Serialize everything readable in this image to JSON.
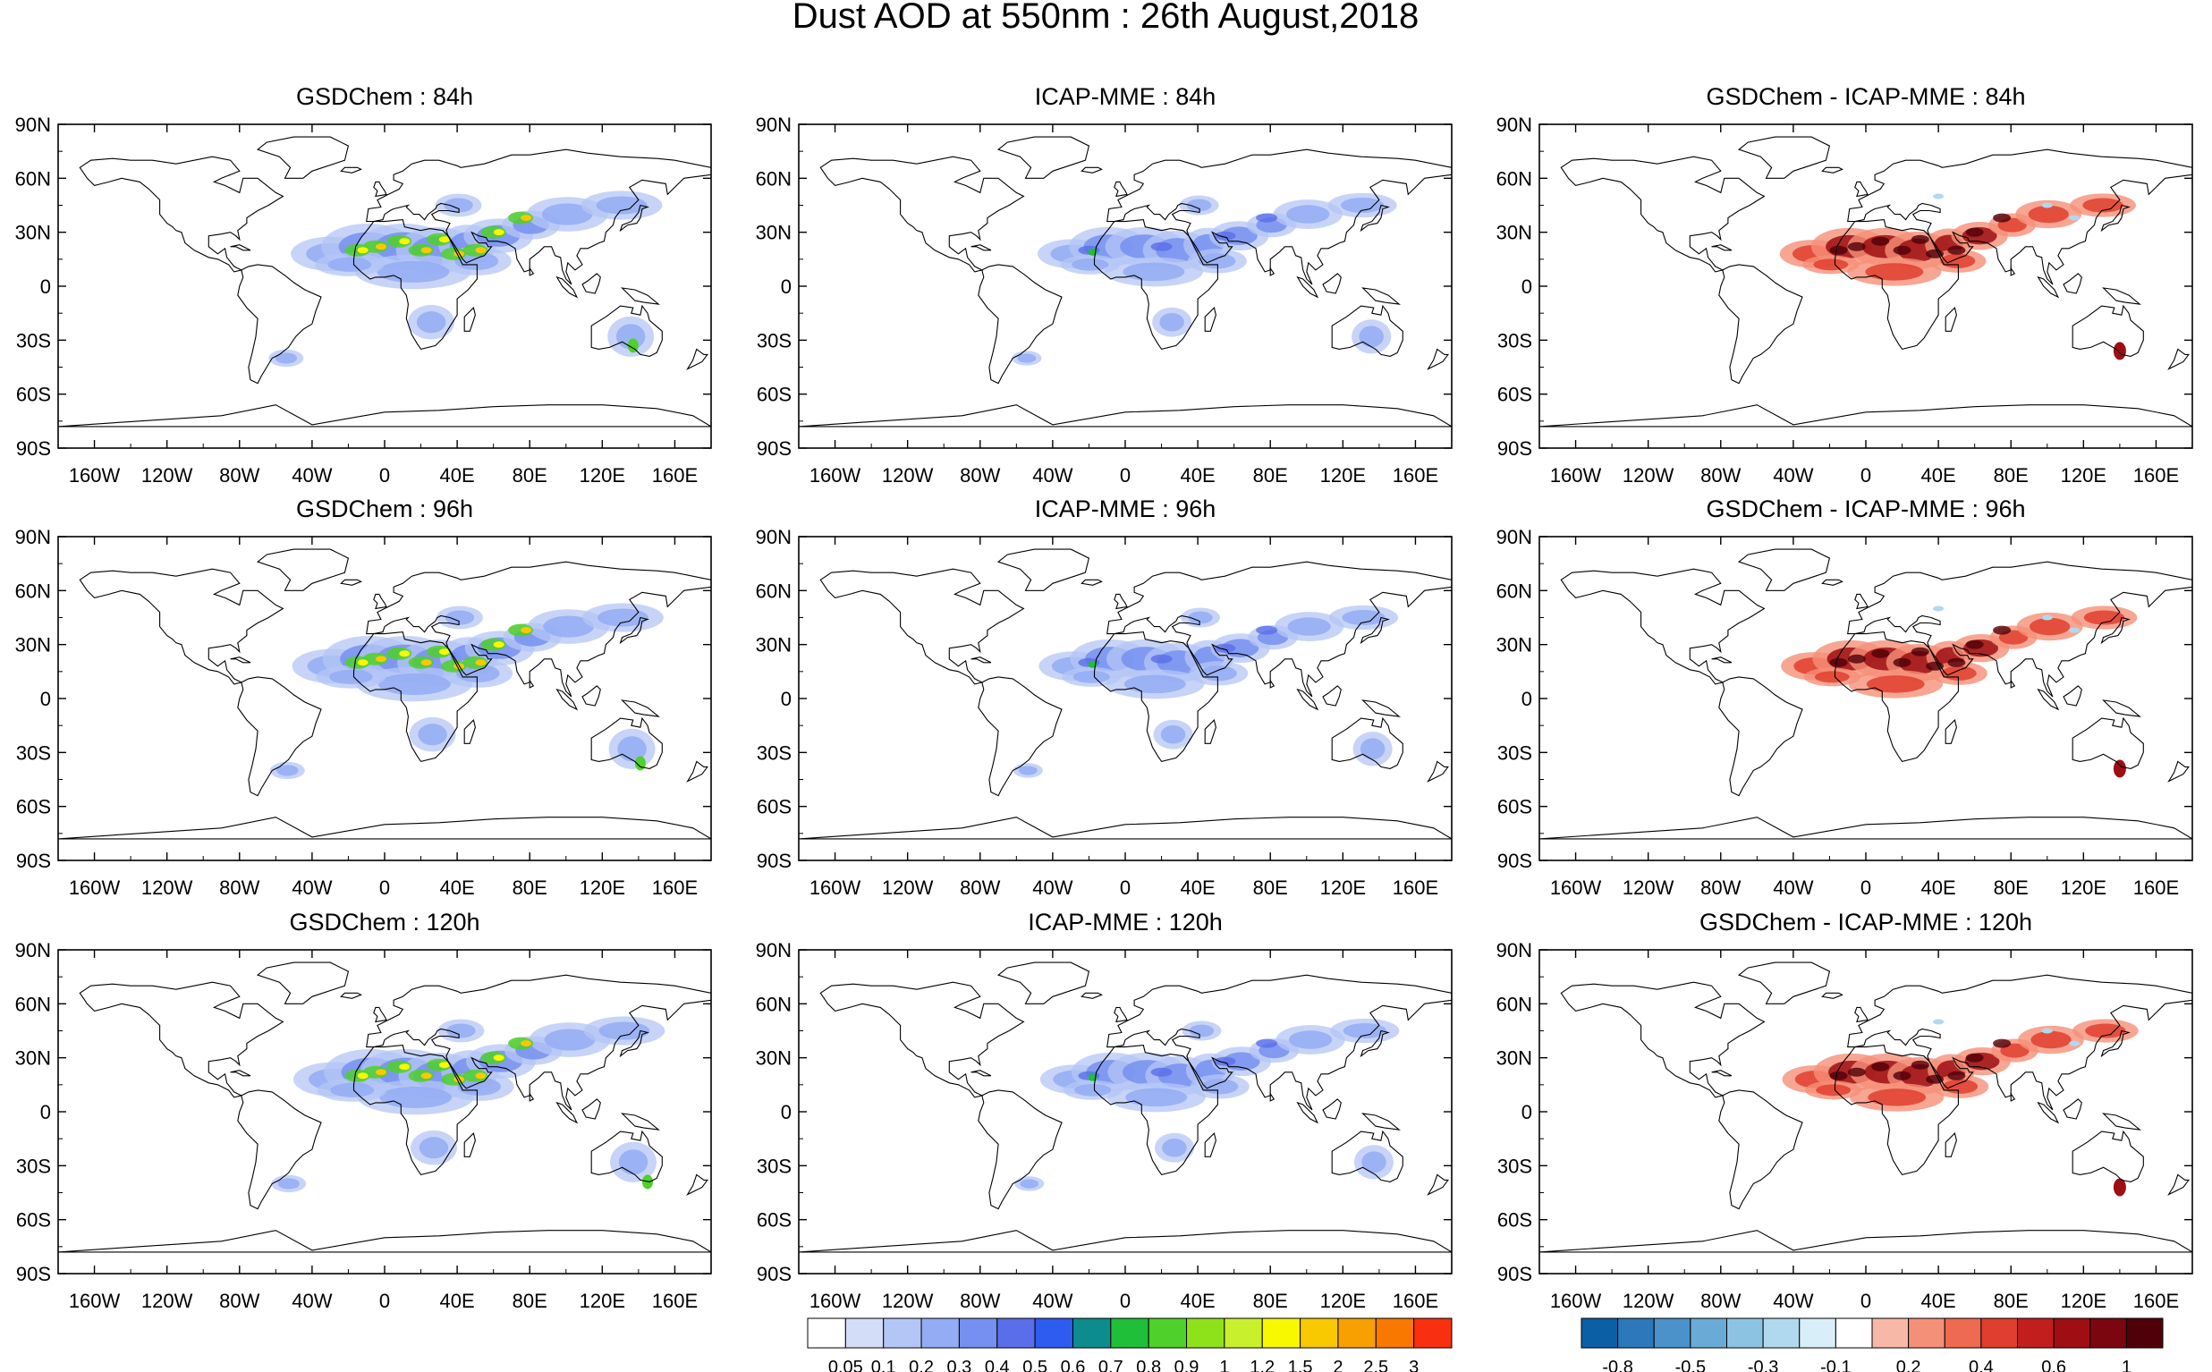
{
  "title": "Dust AOD at 550nm : 26th August,2018",
  "panels": [
    {
      "title": "GSDChem : 84h",
      "kind": "aod"
    },
    {
      "title": "ICAP-MME : 84h",
      "kind": "aod"
    },
    {
      "title": "GSDChem - ICAP-MME : 84h",
      "kind": "diff"
    },
    {
      "title": "GSDChem : 96h",
      "kind": "aod"
    },
    {
      "title": "ICAP-MME : 96h",
      "kind": "aod"
    },
    {
      "title": "GSDChem - ICAP-MME : 96h",
      "kind": "diff"
    },
    {
      "title": "GSDChem : 120h",
      "kind": "aod"
    },
    {
      "title": "ICAP-MME : 120h",
      "kind": "aod"
    },
    {
      "title": "GSDChem - ICAP-MME : 120h",
      "kind": "diff"
    }
  ],
  "lat_labels": [
    "90N",
    "60N",
    "30N",
    "0",
    "30S",
    "60S",
    "90S"
  ],
  "lon_labels": [
    "160W",
    "120W",
    "80W",
    "40W",
    "0",
    "40E",
    "80E",
    "120E",
    "160E"
  ],
  "lon_values": [
    -160,
    -120,
    -80,
    -40,
    0,
    40,
    80,
    120,
    160
  ],
  "lat_values": [
    90,
    60,
    30,
    0,
    -30,
    -60,
    -90
  ],
  "aod_colorbar": {
    "labels": [
      "0.05",
      "0.1",
      "0.2",
      "0.3",
      "0.4",
      "0.5",
      "0.6",
      "0.7",
      "0.8",
      "0.9",
      "1",
      "1.2",
      "1.5",
      "2",
      "2.5",
      "3"
    ],
    "colors": [
      "#ffffff",
      "#d4ddf8",
      "#b4c6f6",
      "#93acf3",
      "#7590f0",
      "#5b6eea",
      "#2f5cf0",
      "#0c8c8c",
      "#1fbf3a",
      "#4fd02a",
      "#8ee21a",
      "#c9f02c",
      "#f8f800",
      "#f8c800",
      "#f8a000",
      "#f87800",
      "#f83010"
    ]
  },
  "diff_colorbar": {
    "labels": [
      "-0.8",
      "-0.5",
      "-0.3",
      "-0.1",
      "0.2",
      "0.4",
      "0.6",
      "1"
    ],
    "colors": [
      "#0b5fa5",
      "#2b79bb",
      "#4a92c9",
      "#6aaad6",
      "#8cc3e2",
      "#b0d9ee",
      "#d8eef8",
      "#ffffff",
      "#f8b8a8",
      "#f59078",
      "#ee6a50",
      "#e03e2e",
      "#c21e1e",
      "#9e0e12",
      "#7c0610",
      "#4f0008"
    ]
  }
}
